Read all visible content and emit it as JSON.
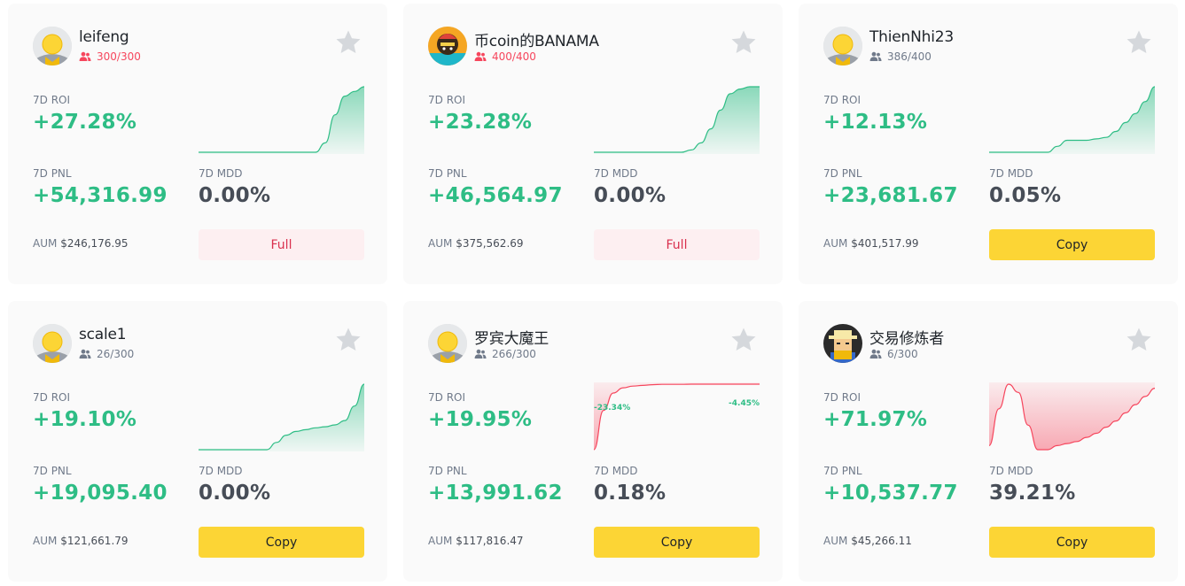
{
  "labels": {
    "roi": "7D ROI",
    "pnl": "7D PNL",
    "mdd": "7D MDD",
    "aum_prefix": "AUM"
  },
  "colors": {
    "positive": "#2ebd85",
    "negative": "#f6465d",
    "button_copy": "#fcd535",
    "button_full": "#fdeff1"
  },
  "traders": [
    {
      "name": "leifeng",
      "followers": "300/300",
      "followers_full": true,
      "avatar_icon": "default-yellow-avatar-icon",
      "roi": "+27.28%",
      "pnl": "+54,316.99",
      "mdd": "0.00%",
      "aum": "$246,176.95",
      "button": "Full",
      "button_state": "full",
      "chart": {
        "direction": "positive",
        "values": [
          0,
          0,
          0,
          0,
          0,
          0,
          0,
          0,
          0,
          0,
          0,
          0,
          0,
          2,
          8,
          12,
          13,
          14
        ],
        "min_label": "",
        "max_label": ""
      }
    },
    {
      "name": "币coin的BANAMA",
      "followers": "400/400",
      "followers_full": true,
      "avatar_icon": "banana-character-avatar-icon",
      "roi": "+23.28%",
      "pnl": "+46,564.97",
      "mdd": "0.00%",
      "aum": "$375,562.69",
      "button": "Full",
      "button_state": "full",
      "chart": {
        "direction": "positive",
        "values": [
          0,
          0,
          0,
          0,
          0,
          0,
          0,
          0,
          0,
          0,
          1,
          4,
          10,
          18,
          25,
          27,
          28,
          28
        ],
        "min_label": "",
        "max_label": ""
      }
    },
    {
      "name": "ThienNhi23",
      "followers": "386/400",
      "followers_full": false,
      "avatar_icon": "default-yellow-avatar-icon",
      "roi": "+12.13%",
      "pnl": "+23,681.67",
      "mdd": "0.05%",
      "aum": "$401,517.99",
      "button": "Copy",
      "button_state": "copy",
      "chart": {
        "direction": "positive",
        "values": [
          0,
          0,
          0,
          0,
          0,
          0,
          0,
          2,
          4,
          4,
          4,
          4.5,
          5,
          7,
          10,
          13,
          17,
          22
        ],
        "min_label": "",
        "max_label": ""
      }
    },
    {
      "name": "scale1",
      "followers": "26/300",
      "followers_full": false,
      "avatar_icon": "default-yellow-avatar-icon",
      "roi": "+19.10%",
      "pnl": "+19,095.40",
      "mdd": "0.00%",
      "aum": "$121,661.79",
      "button": "Copy",
      "button_state": "copy",
      "chart": {
        "direction": "positive",
        "values": [
          0,
          0,
          0,
          0,
          0,
          0,
          0,
          0,
          2,
          4,
          5,
          5.5,
          6,
          6.3,
          6.8,
          8,
          12,
          18
        ],
        "min_label": "",
        "max_label": ""
      }
    },
    {
      "name": "罗宾大魔王",
      "followers": "266/300",
      "followers_full": false,
      "avatar_icon": "default-yellow-avatar-icon",
      "roi": "+19.95%",
      "pnl": "+13,991.62",
      "mdd": "0.18%",
      "aum": "$117,816.47",
      "button": "Copy",
      "button_state": "copy",
      "chart": {
        "direction": "negative",
        "values": [
          -23.34,
          -12,
          -7,
          -5.5,
          -5,
          -4.8,
          -4.6,
          -4.5,
          -4.5,
          -4.5,
          -4.45,
          -4.45,
          -4.45,
          -4.45,
          -4.45,
          -4.45,
          -4.45,
          -4.45
        ],
        "min_label": "-23.34%",
        "max_label": "-4.45%"
      }
    },
    {
      "name": "交易修炼者",
      "followers": "6/300",
      "followers_full": false,
      "avatar_icon": "straw-hat-character-avatar-icon",
      "roi": "+71.97%",
      "pnl": "+10,537.77",
      "mdd": "39.21%",
      "aum": "$45,266.11",
      "button": "Copy",
      "button_state": "copy",
      "chart": {
        "direction": "negative",
        "values": [
          -39,
          -30,
          -24,
          -26,
          -34,
          -40,
          -40,
          -39,
          -38.5,
          -38,
          -37,
          -36,
          -34.5,
          -33,
          -31,
          -29,
          -27,
          -25
        ],
        "min_label": "",
        "max_label": ""
      }
    }
  ]
}
